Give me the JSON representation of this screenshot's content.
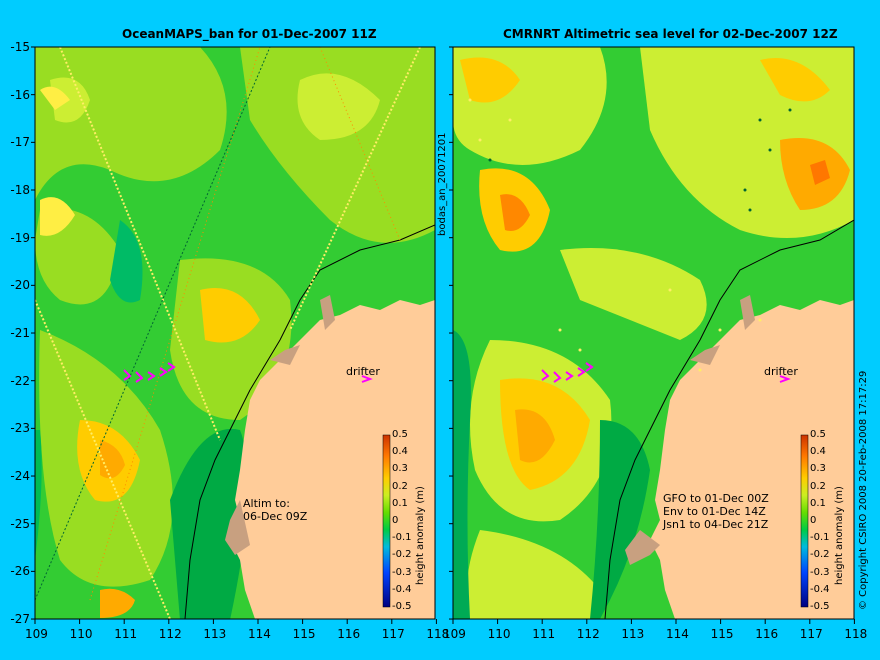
{
  "left_panel": {
    "title": "OceanMAPS_ban for 01-Dec-2007 11Z",
    "altim_note_line1": "Altim to:",
    "altim_note_line2": "06-Dec 09Z",
    "drifter_label": "drifter"
  },
  "right_panel": {
    "title": "CMRNRT Altimetric sea level  for 02-Dec-2007 12Z",
    "drifter_label": "drifter",
    "sat_line1": "GFO to 01-Dec 00Z",
    "sat_line2": "Env to 01-Dec 14Z",
    "sat_line3": "Jsn1 to 04-Dec 21Z"
  },
  "side_label": "bodas_an_20071201",
  "copyright": "© Copyright CSIRO 2008   20-Feb-2008 17:17:29",
  "colorbar": {
    "label": "height anomaly (m)",
    "ticks": [
      "0.5",
      "0.4",
      "0.3",
      "0.2",
      "0.1",
      "0",
      "-0.1",
      "-0.2",
      "-0.3",
      "-0.4",
      "-0.5"
    ]
  },
  "axes": {
    "y_ticks": [
      "-15",
      "-16",
      "-17",
      "-18",
      "-19",
      "-20",
      "-21",
      "-22",
      "-23",
      "-24",
      "-25",
      "-26",
      "-27"
    ],
    "x_ticks": [
      "109",
      "110",
      "111",
      "112",
      "113",
      "114",
      "115",
      "116",
      "117",
      "118"
    ]
  },
  "colors": {
    "background": "#00ccff",
    "land": "#ffcc99",
    "marker": "#ff00ff"
  }
}
